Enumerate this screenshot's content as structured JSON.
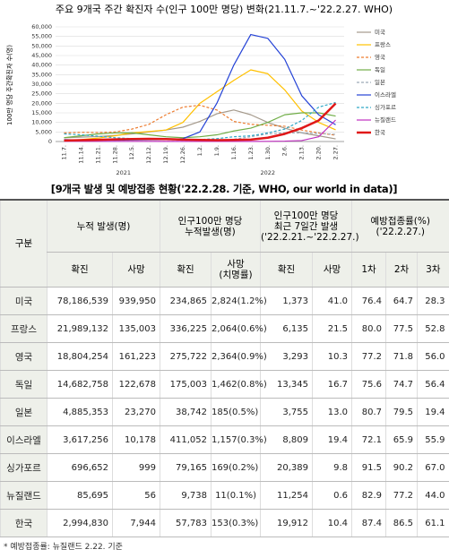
{
  "chart_data": {
    "type": "line",
    "title": "주요 9개국 주간 확진자 수(인구 100만 명당) 변화(21.11.7.~'22.2.27. WHO)",
    "y_label": "100만 명당 주간확진자 수(명)",
    "categories": [
      "11.7.",
      "11.14.",
      "11.21.",
      "11.28.",
      "12.5.",
      "12.12.",
      "12.19.",
      "12.26.",
      "1.2.",
      "1.9.",
      "1.16.",
      "1.23.",
      "1.30.",
      "2.6.",
      "2.13.",
      "2.20.",
      "2.27."
    ],
    "x_group_labels": [
      "2021",
      "2022"
    ],
    "ylim": [
      0,
      60000
    ],
    "yticks": [
      0,
      {
        "value": 5000,
        "label": "5,000"
      },
      {
        "value": 10000,
        "label": "10,000"
      },
      {
        "value": 15000,
        "label": "15,000"
      },
      {
        "value": 20000,
        "label": "20,000"
      },
      {
        "value": 25000,
        "label": "25,000"
      },
      {
        "value": 30000,
        "label": "30,000"
      },
      {
        "value": 35000,
        "label": "35,000"
      },
      {
        "value": 40000,
        "label": "40,000"
      },
      {
        "value": 45000,
        "label": "45,000"
      },
      {
        "value": 50000,
        "label": "50,000"
      },
      {
        "value": 55000,
        "label": "55,000"
      },
      {
        "value": 60000,
        "label": "60,000"
      }
    ],
    "grid": true,
    "series": [
      {
        "name": "미국",
        "color": "#a59a8c",
        "dashed": false,
        "width": 1.2,
        "values": [
          2000,
          2300,
          2600,
          3200,
          4000,
          5000,
          6000,
          7500,
          10500,
          14500,
          16500,
          14000,
          10000,
          7000,
          4500,
          3000,
          1373
        ]
      },
      {
        "name": "프랑스",
        "color": "#ffc000",
        "dashed": false,
        "width": 1.2,
        "values": [
          500,
          1000,
          1800,
          3000,
          4500,
          5200,
          6000,
          10000,
          20000,
          26000,
          32000,
          37500,
          35500,
          27000,
          16000,
          10000,
          6135
        ]
      },
      {
        "name": "영국",
        "color": "#ed7d31",
        "dashed": true,
        "width": 1.2,
        "values": [
          4500,
          4800,
          4700,
          5000,
          6500,
          9000,
          14000,
          18000,
          19000,
          16500,
          10500,
          9000,
          8500,
          8000,
          6000,
          4500,
          3293
        ]
      },
      {
        "name": "독일",
        "color": "#70ad47",
        "dashed": false,
        "width": 1.2,
        "values": [
          2000,
          3000,
          4000,
          4500,
          4500,
          3500,
          2500,
          2000,
          2500,
          3500,
          5500,
          7000,
          10000,
          14000,
          15000,
          15000,
          13345
        ]
      },
      {
        "name": "일본",
        "color": "#9dabb8",
        "dashed": true,
        "width": 1.2,
        "values": [
          20,
          20,
          20,
          20,
          20,
          30,
          40,
          60,
          150,
          500,
          1200,
          2500,
          4000,
          4500,
          4500,
          4200,
          3755
        ]
      },
      {
        "name": "이스라엘",
        "color": "#2442d6",
        "dashed": false,
        "width": 1.2,
        "values": [
          1000,
          800,
          700,
          700,
          800,
          900,
          1000,
          1500,
          5000,
          20000,
          40000,
          56000,
          54000,
          43000,
          24000,
          14000,
          8809
        ]
      },
      {
        "name": "싱가포르",
        "color": "#31a9c8",
        "dashed": true,
        "width": 1.2,
        "values": [
          4000,
          3500,
          2800,
          2000,
          1500,
          1200,
          1000,
          1000,
          1000,
          1500,
          2500,
          3000,
          4500,
          6500,
          11000,
          18000,
          20389
        ]
      },
      {
        "name": "뉴질랜드",
        "color": "#c030c0",
        "dashed": false,
        "width": 1.2,
        "values": [
          100,
          100,
          100,
          100,
          100,
          80,
          60,
          50,
          50,
          50,
          50,
          50,
          100,
          200,
          500,
          2500,
          11254
        ]
      },
      {
        "name": "한국",
        "color": "#e01818",
        "dashed": false,
        "width": 2.5,
        "values": [
          500,
          700,
          900,
          1100,
          1300,
          1400,
          1300,
          1000,
          800,
          700,
          800,
          1000,
          2000,
          4000,
          7000,
          11000,
          19912
        ]
      }
    ]
  },
  "table": {
    "title": "[9개국 발생 및 예방접종 현황('22.2.28. 기준, WHO, our world in data)]",
    "header_row1": [
      "구분",
      "누적 발생(명)",
      "인구100만 명당\n누적발생(명)",
      "인구100만 명당\n최근 7일간 발생\n('22.2.21.~'22.2.27.)",
      "예방접종률(%)\n('22.2.27.)"
    ],
    "header_row2": [
      "확진",
      "사망",
      "확진",
      "사망\n(치명률)",
      "확진",
      "사망",
      "1차",
      "2차",
      "3차"
    ],
    "rows": [
      [
        "미국",
        "78,186,539",
        "939,950",
        "234,865",
        "2,824(1.2%)",
        "1,373",
        "41.0",
        "76.4",
        "64.7",
        "28.3"
      ],
      [
        "프랑스",
        "21,989,132",
        "135,003",
        "336,225",
        "2,064(0.6%)",
        "6,135",
        "21.5",
        "80.0",
        "77.5",
        "52.8"
      ],
      [
        "영국",
        "18,804,254",
        "161,223",
        "275,722",
        "2,364(0.9%)",
        "3,293",
        "10.3",
        "77.2",
        "71.8",
        "56.0"
      ],
      [
        "독일",
        "14,682,758",
        "122,678",
        "175,003",
        "1,462(0.8%)",
        "13,345",
        "16.7",
        "75.6",
        "74.7",
        "56.4"
      ],
      [
        "일본",
        "4,885,353",
        "23,270",
        "38,742",
        "185(0.5%)",
        "3,755",
        "13.0",
        "80.7",
        "79.5",
        "19.4"
      ],
      [
        "이스라엘",
        "3,617,256",
        "10,178",
        "411,052",
        "1,157(0.3%)",
        "8,809",
        "19.4",
        "72.1",
        "65.9",
        "55.9"
      ],
      [
        "싱가포르",
        "696,652",
        "999",
        "79,165",
        "169(0.2%)",
        "20,389",
        "9.8",
        "91.5",
        "90.2",
        "67.0"
      ],
      [
        "뉴질랜드",
        "85,695",
        "56",
        "9,738",
        "11(0.1%)",
        "11,254",
        "0.6",
        "82.9",
        "77.2",
        "44.0"
      ],
      [
        "한국",
        "2,994,830",
        "7,944",
        "57,783",
        "153(0.3%)",
        "19,912",
        "10.4",
        "87.4",
        "86.5",
        "61.1"
      ]
    ]
  },
  "footnote": "* 예방접종률: 뉴질랜드 2.22. 기준"
}
